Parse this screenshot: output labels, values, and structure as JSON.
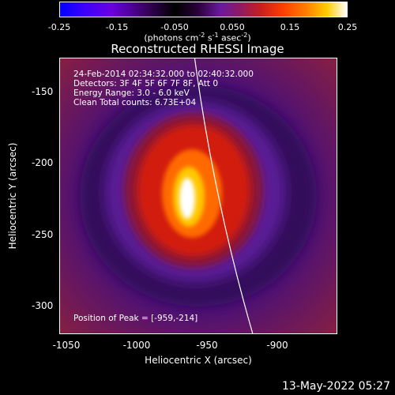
{
  "colorbar": {
    "ticks": [
      "-0.25",
      "-0.15",
      "-0.050",
      "0.050",
      "0.15",
      "0.25"
    ],
    "tick_values": [
      -0.25,
      -0.15,
      -0.05,
      0.05,
      0.15,
      0.25
    ],
    "range": [
      -0.25,
      0.25
    ],
    "units_prefix": "(photons cm",
    "units_sup1": "-2",
    "units_mid1": " s",
    "units_sup2": "-1",
    "units_mid2": " asec",
    "units_sup3": "-2",
    "units_suffix": ")"
  },
  "title": "Reconstructed RHESSI Image",
  "info": {
    "line1": "24-Feb-2014 02:34:32.000 to 02:40:32.000",
    "line2": "Detectors: 3F 4F 5F 6F 7F 8F, Att 0",
    "line3": "Energy Range: 3.0 - 6.0 keV",
    "line4": "Clean    Total counts: 6.73E+04",
    "peak": "Position of Peak = [-959,-214]"
  },
  "axes": {
    "xlabel": "Heliocentric X (arcsec)",
    "ylabel": "Heliocentric Y (arcsec)",
    "xticks": [
      "-1050",
      "-1000",
      "-950",
      "-900"
    ],
    "xtick_values": [
      -1050,
      -1000,
      -950,
      -900
    ],
    "yticks": [
      "-150",
      "-200",
      "-250",
      "-300"
    ],
    "ytick_values": [
      -150,
      -200,
      -250,
      -300
    ],
    "xlim": [
      -1050,
      -850
    ],
    "ylim": [
      -320,
      -120
    ]
  },
  "timestamp": "13-May-2022 05:27",
  "colors": {
    "background": "#000000",
    "outer": "#7a1a4a",
    "ring": "#3a1068",
    "emission": "#c81e10",
    "core": "#ffffff",
    "limb": "#ffffff"
  }
}
